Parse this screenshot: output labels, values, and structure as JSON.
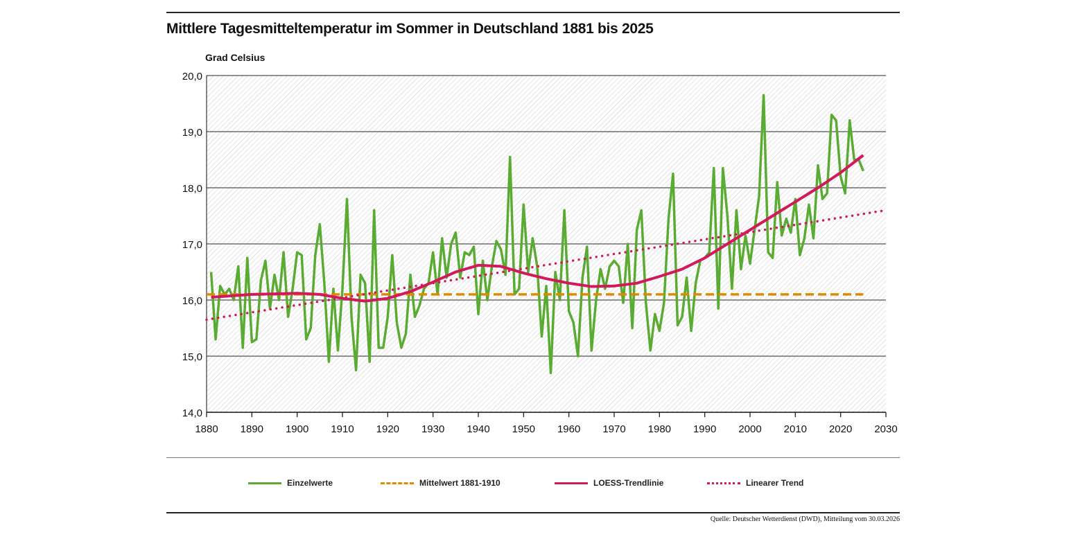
{
  "chart_data": {
    "type": "line",
    "title": "Mittlere Tagesmitteltemperatur im Sommer in Deutschland 1881 bis 2025",
    "ylabel": "Grad Celsius",
    "xlabel": "",
    "xlim": [
      1880,
      2030
    ],
    "ylim": [
      14,
      20
    ],
    "x_ticks": [
      "1880",
      "1890",
      "1900",
      "1910",
      "1920",
      "1930",
      "1940",
      "1950",
      "1960",
      "1970",
      "1980",
      "1990",
      "2000",
      "2010",
      "2020",
      "2030"
    ],
    "y_ticks": [
      "14,0",
      "15,0",
      "16,0",
      "17,0",
      "18,0",
      "19,0",
      "20,0"
    ],
    "grid": true,
    "legend_position": "bottom",
    "colors": {
      "einzelwerte": "#5aab32",
      "mittelwert": "#e08a00",
      "loess": "#d1195c",
      "trend": "#d1195c"
    },
    "series": [
      {
        "name": "Einzelwerte",
        "x_start": 1881,
        "values": [
          16.5,
          15.3,
          16.25,
          16.1,
          16.2,
          16.0,
          16.6,
          15.15,
          16.75,
          15.25,
          15.3,
          16.35,
          16.7,
          15.85,
          16.45,
          16.0,
          16.85,
          15.7,
          16.2,
          16.85,
          16.8,
          15.3,
          15.5,
          16.8,
          17.35,
          16.3,
          14.9,
          16.2,
          15.1,
          16.2,
          17.8,
          15.7,
          14.75,
          16.45,
          16.3,
          14.9,
          17.6,
          15.15,
          15.15,
          15.7,
          16.8,
          15.6,
          15.15,
          15.4,
          16.45,
          15.7,
          15.9,
          16.2,
          16.3,
          16.85,
          16.1,
          17.1,
          16.4,
          17.0,
          17.2,
          16.4,
          16.85,
          16.8,
          16.95,
          15.75,
          16.7,
          16.0,
          16.6,
          17.05,
          16.9,
          16.45,
          18.55,
          16.1,
          16.2,
          17.7,
          16.5,
          17.1,
          16.6,
          15.35,
          16.25,
          14.7,
          16.5,
          16.0,
          17.6,
          15.8,
          15.6,
          15.0,
          16.4,
          16.95,
          15.1,
          16.0,
          16.55,
          16.2,
          16.6,
          16.7,
          16.6,
          15.95,
          17.0,
          15.5,
          17.25,
          17.6,
          15.95,
          15.1,
          15.75,
          15.45,
          15.95,
          17.45,
          18.25,
          15.55,
          15.7,
          16.4,
          15.45,
          16.3,
          16.7,
          16.75,
          16.85,
          18.35,
          15.85,
          18.35,
          17.5,
          16.2,
          17.6,
          16.55,
          17.15,
          16.65,
          17.25,
          17.85,
          19.65,
          16.85,
          16.75,
          18.1,
          17.15,
          17.45,
          17.2,
          17.8,
          16.8,
          17.1,
          17.7,
          17.1,
          18.4,
          17.8,
          17.9,
          19.3,
          19.2,
          18.2,
          17.9,
          19.2,
          18.5,
          18.5,
          18.3
        ]
      },
      {
        "name": "Mittelwert 1881-1910",
        "x": [
          1880,
          2025
        ],
        "values": [
          16.1,
          16.1
        ]
      },
      {
        "name": "LOESS-Trendlinie",
        "x": [
          1881,
          1890,
          1900,
          1905,
          1910,
          1915,
          1920,
          1925,
          1930,
          1935,
          1940,
          1945,
          1950,
          1955,
          1960,
          1965,
          1970,
          1975,
          1980,
          1985,
          1990,
          1995,
          2000,
          2005,
          2010,
          2015,
          2020,
          2025
        ],
        "values": [
          16.05,
          16.1,
          16.12,
          16.1,
          16.03,
          15.98,
          16.03,
          16.15,
          16.32,
          16.5,
          16.62,
          16.6,
          16.48,
          16.38,
          16.3,
          16.24,
          16.25,
          16.3,
          16.42,
          16.55,
          16.75,
          17.0,
          17.25,
          17.5,
          17.75,
          18.0,
          18.27,
          18.58
        ]
      },
      {
        "name": "Linearer Trend",
        "x": [
          1880,
          2030
        ],
        "values": [
          15.65,
          17.6
        ]
      }
    ],
    "source": "Quelle: Deutscher Wetterdienst (DWD), Mitteilung vom 30.03.2026"
  }
}
